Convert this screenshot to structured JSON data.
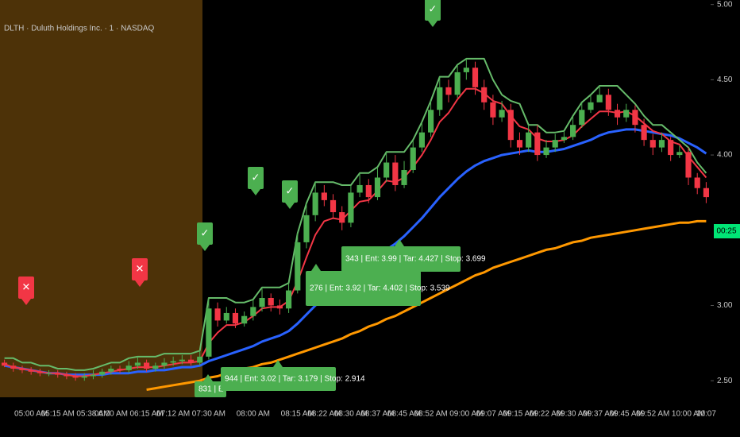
{
  "chart_data": {
    "type": "candlestick",
    "title": "DLTH · Duluth Holdings Inc. · 1 · NASDAQ",
    "countdown": "00:25",
    "categories": [
      null,
      null,
      null,
      "05:00 AM",
      null,
      null,
      "05:15 AM",
      null,
      null,
      null,
      "05:38 AM",
      null,
      "06:00 AM",
      null,
      null,
      null,
      "06:15 AM",
      null,
      null,
      "07:12 AM",
      null,
      null,
      null,
      "07:30 AM",
      null,
      null,
      null,
      null,
      "08:00 AM",
      null,
      null,
      null,
      null,
      "08:15 AM",
      null,
      null,
      "08:22 AM",
      null,
      null,
      "08:30 AM",
      null,
      null,
      "08:37 AM",
      null,
      null,
      "08:45 AM",
      null,
      null,
      "08:52 AM",
      null,
      null,
      null,
      "09:00 AM",
      null,
      null,
      "09:07 AM",
      null,
      null,
      "09:15 AM",
      null,
      null,
      "09:22 AM",
      null,
      null,
      "09:30 AM",
      null,
      null,
      "09:37 AM",
      null,
      null,
      "09:45 AM",
      null,
      null,
      "09:52 AM",
      null,
      null,
      null,
      "10:00 AM",
      null,
      "10:07"
    ],
    "open": [
      2.62,
      2.6,
      2.58,
      2.57,
      2.56,
      2.55,
      2.55,
      2.54,
      2.53,
      2.52,
      2.53,
      2.54,
      2.56,
      2.58,
      2.57,
      2.6,
      2.62,
      2.58,
      2.6,
      2.62,
      2.63,
      2.64,
      2.62,
      2.66,
      2.98,
      2.9,
      2.95,
      2.88,
      2.93,
      2.99,
      3.05,
      3.0,
      2.98,
      3.1,
      3.42,
      3.6,
      3.75,
      3.7,
      3.62,
      3.55,
      3.75,
      3.8,
      3.72,
      3.85,
      3.95,
      3.8,
      3.9,
      4.05,
      4.15,
      4.3,
      4.45,
      4.4,
      4.55,
      4.58,
      4.45,
      4.35,
      4.25,
      4.3,
      4.1,
      4.05,
      4.15,
      4.0,
      4.05,
      4.1,
      4.12,
      4.2,
      4.3,
      4.35,
      4.4,
      4.3,
      4.25,
      4.3,
      4.2,
      4.1,
      4.05,
      4.1,
      4.0,
      4.02,
      3.85,
      3.78
    ],
    "high": [
      2.64,
      2.62,
      2.6,
      2.59,
      2.58,
      2.57,
      2.57,
      2.56,
      2.55,
      2.55,
      2.57,
      2.58,
      2.6,
      2.6,
      2.63,
      2.66,
      2.64,
      2.62,
      2.65,
      2.66,
      2.67,
      2.67,
      2.7,
      3.05,
      3.02,
      2.99,
      2.98,
      2.96,
      3.04,
      3.12,
      3.08,
      3.04,
      3.15,
      3.48,
      3.68,
      3.82,
      3.8,
      3.74,
      3.66,
      3.8,
      3.88,
      3.84,
      3.92,
      4.02,
      4.0,
      3.96,
      4.1,
      4.22,
      4.36,
      4.52,
      4.5,
      4.6,
      4.64,
      4.62,
      4.5,
      4.4,
      4.36,
      4.34,
      4.15,
      4.2,
      4.2,
      4.1,
      4.14,
      4.16,
      4.26,
      4.35,
      4.4,
      4.46,
      4.44,
      4.34,
      4.34,
      4.33,
      4.24,
      4.14,
      4.15,
      4.12,
      4.06,
      4.05,
      3.88,
      3.82
    ],
    "low": [
      2.59,
      2.56,
      2.55,
      2.54,
      2.53,
      2.53,
      2.52,
      2.51,
      2.5,
      2.5,
      2.51,
      2.52,
      2.54,
      2.55,
      2.55,
      2.58,
      2.56,
      2.56,
      2.58,
      2.6,
      2.61,
      2.6,
      2.6,
      2.64,
      2.86,
      2.88,
      2.85,
      2.86,
      2.9,
      2.96,
      2.96,
      2.94,
      2.95,
      3.08,
      3.38,
      3.56,
      3.66,
      3.58,
      3.5,
      3.52,
      3.72,
      3.68,
      3.7,
      3.82,
      3.76,
      3.78,
      3.88,
      4.02,
      4.12,
      4.26,
      4.35,
      4.38,
      4.5,
      4.4,
      4.3,
      4.2,
      4.22,
      4.05,
      4.0,
      4.02,
      3.96,
      3.98,
      4.02,
      4.08,
      4.1,
      4.18,
      4.28,
      4.36,
      4.26,
      4.2,
      4.22,
      4.15,
      4.06,
      4.0,
      4.02,
      3.96,
      3.98,
      3.8,
      3.74,
      3.68
    ],
    "close": [
      2.6,
      2.58,
      2.57,
      2.56,
      2.55,
      2.55,
      2.54,
      2.53,
      2.52,
      2.53,
      2.54,
      2.56,
      2.58,
      2.57,
      2.6,
      2.62,
      2.58,
      2.6,
      2.62,
      2.63,
      2.64,
      2.62,
      2.66,
      2.98,
      2.9,
      2.95,
      2.88,
      2.93,
      2.99,
      3.05,
      3.0,
      2.98,
      3.1,
      3.42,
      3.6,
      3.75,
      3.7,
      3.62,
      3.55,
      3.75,
      3.8,
      3.72,
      3.85,
      3.95,
      3.8,
      3.9,
      4.05,
      4.15,
      4.3,
      4.45,
      4.4,
      4.55,
      4.58,
      4.45,
      4.35,
      4.25,
      4.3,
      4.1,
      4.05,
      4.15,
      4.0,
      4.05,
      4.1,
      4.12,
      4.2,
      4.3,
      4.35,
      4.4,
      4.3,
      4.25,
      4.3,
      4.2,
      4.1,
      4.05,
      4.1,
      4.0,
      4.02,
      3.85,
      3.78,
      3.72
    ],
    "up_color": "#4caf50",
    "down_color": "#f23645",
    "lines": [
      {
        "color": "#ff9800",
        "values": [
          null,
          null,
          null,
          null,
          null,
          null,
          null,
          null,
          null,
          null,
          null,
          null,
          null,
          null,
          null,
          null,
          2.44,
          2.45,
          2.46,
          2.47,
          2.48,
          2.49,
          2.5,
          2.52,
          2.53,
          2.55,
          2.56,
          2.58,
          2.59,
          2.61,
          2.62,
          2.64,
          2.66,
          2.68,
          2.7,
          2.72,
          2.74,
          2.76,
          2.78,
          2.81,
          2.83,
          2.86,
          2.88,
          2.91,
          2.93,
          2.96,
          2.99,
          3.02,
          3.05,
          3.08,
          3.11,
          3.14,
          3.17,
          3.2,
          3.22,
          3.25,
          3.27,
          3.29,
          3.31,
          3.33,
          3.35,
          3.37,
          3.38,
          3.4,
          3.42,
          3.43,
          3.45,
          3.46,
          3.47,
          3.48,
          3.49,
          3.5,
          3.51,
          3.52,
          3.53,
          3.54,
          3.55,
          3.55,
          3.56,
          3.56
        ]
      },
      {
        "color": "#2962ff",
        "values": [
          2.6,
          2.59,
          2.58,
          2.57,
          2.56,
          2.55,
          2.55,
          2.54,
          2.54,
          2.54,
          2.54,
          2.54,
          2.55,
          2.55,
          2.55,
          2.56,
          2.56,
          2.57,
          2.57,
          2.58,
          2.59,
          2.59,
          2.6,
          2.63,
          2.65,
          2.67,
          2.69,
          2.71,
          2.73,
          2.76,
          2.78,
          2.8,
          2.83,
          2.88,
          2.94,
          3.0,
          3.05,
          3.09,
          3.12,
          3.17,
          3.22,
          3.26,
          3.31,
          3.37,
          3.41,
          3.46,
          3.52,
          3.58,
          3.65,
          3.72,
          3.78,
          3.84,
          3.89,
          3.93,
          3.96,
          3.98,
          4.0,
          4.01,
          4.02,
          4.03,
          4.02,
          4.02,
          4.03,
          4.04,
          4.06,
          4.08,
          4.1,
          4.13,
          4.15,
          4.16,
          4.17,
          4.17,
          4.16,
          4.15,
          4.14,
          4.13,
          4.11,
          4.08,
          4.05,
          4.01
        ]
      },
      {
        "color": "#66bb6a",
        "values": [
          2.65,
          2.65,
          2.62,
          2.62,
          2.6,
          2.6,
          2.58,
          2.58,
          2.57,
          2.57,
          2.58,
          2.6,
          2.62,
          2.62,
          2.65,
          2.66,
          2.66,
          2.66,
          2.68,
          2.68,
          2.68,
          2.68,
          2.7,
          3.05,
          3.05,
          3.05,
          3.02,
          3.02,
          3.04,
          3.12,
          3.12,
          3.12,
          3.15,
          3.48,
          3.68,
          3.82,
          3.82,
          3.82,
          3.8,
          3.8,
          3.88,
          3.88,
          3.92,
          4.02,
          4.02,
          4.02,
          4.1,
          4.22,
          4.36,
          4.52,
          4.52,
          4.6,
          4.64,
          4.64,
          4.64,
          4.5,
          4.4,
          4.36,
          4.34,
          4.2,
          4.2,
          4.15,
          4.15,
          4.16,
          4.26,
          4.35,
          4.4,
          4.46,
          4.46,
          4.46,
          4.4,
          4.34,
          4.26,
          4.2,
          4.2,
          4.15,
          4.1,
          4.05,
          3.95,
          3.88
        ]
      },
      {
        "color": "#f23645",
        "values": [
          2.61,
          2.59,
          2.58,
          2.57,
          2.56,
          2.55,
          2.55,
          2.54,
          2.53,
          2.53,
          2.54,
          2.55,
          2.56,
          2.57,
          2.58,
          2.59,
          2.59,
          2.59,
          2.6,
          2.61,
          2.62,
          2.62,
          2.63,
          2.75,
          2.82,
          2.87,
          2.87,
          2.89,
          2.93,
          2.98,
          2.99,
          2.99,
          3.03,
          3.16,
          3.32,
          3.47,
          3.56,
          3.58,
          3.57,
          3.63,
          3.69,
          3.7,
          3.76,
          3.83,
          3.82,
          3.85,
          3.92,
          4.0,
          4.1,
          4.22,
          4.28,
          4.37,
          4.44,
          4.44,
          4.41,
          4.36,
          4.34,
          4.26,
          4.19,
          4.17,
          4.11,
          4.09,
          4.09,
          4.1,
          4.13,
          4.19,
          4.24,
          4.29,
          4.29,
          4.28,
          4.29,
          4.26,
          4.21,
          4.16,
          4.14,
          4.09,
          4.07,
          3.99,
          3.92,
          3.85
        ]
      }
    ],
    "ylim": [
      2.39,
      5.03
    ],
    "yticks": [
      {
        "value": 5,
        "label": "5.00"
      },
      {
        "value": 4.5,
        "label": "4.50"
      },
      {
        "value": 4,
        "label": "4.00"
      },
      {
        "value": 3,
        "label": "3.00"
      },
      {
        "value": 2.5,
        "label": "2.50"
      }
    ],
    "signals": {
      "buy": "✓",
      "sell": "✕"
    },
    "trades": [
      "343 | Ent: 3.99 | Tar: 4.427 | Stop: 3.699",
      "276 | Ent: 3.92 | Tar: 4.402 | Stop: 3.539",
      "944 | Ent: 3.02 | Tar: 3.179 | Stop: 2.914",
      "831 | E"
    ]
  }
}
